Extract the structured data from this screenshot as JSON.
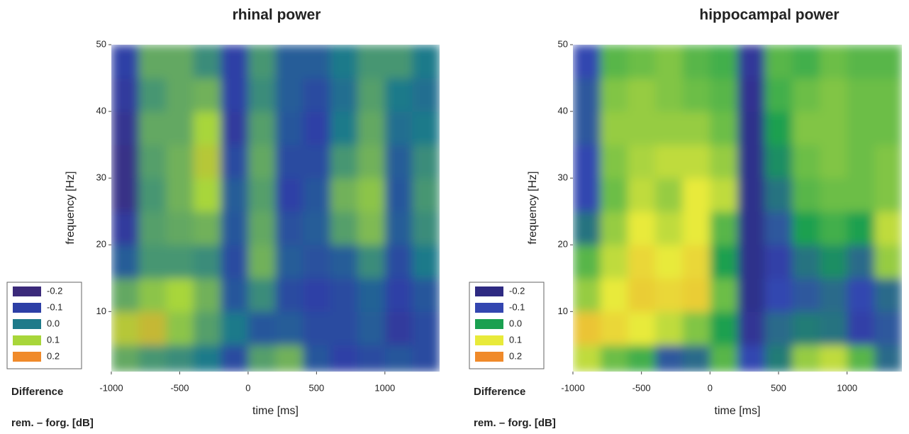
{
  "chart_data": [
    {
      "type": "heatmap",
      "title": "rhinal power",
      "xlabel": "time [ms]",
      "ylabel": "frequency [Hz]",
      "legend_title": "Difference",
      "legend_subtitle": "rem. – forg. [dB]",
      "xlim": [
        -1000,
        1400
      ],
      "ylim": [
        1,
        50
      ],
      "xticks": [
        -1000,
        -500,
        0,
        500,
        1000
      ],
      "yticks": [
        10,
        20,
        30,
        40,
        50
      ],
      "x_bins": [
        -1000,
        -800,
        -600,
        -400,
        -200,
        0,
        200,
        400,
        600,
        800,
        1000,
        1200,
        1400
      ],
      "y_bins": [
        1,
        5,
        10,
        15,
        20,
        25,
        30,
        35,
        40,
        45,
        50
      ],
      "legend": [
        {
          "value": -0.2,
          "color": "#3b2a7a"
        },
        {
          "value": -0.1,
          "color": "#2d3fa6"
        },
        {
          "value": 0,
          "label": "0.0",
          "color": "#1e7a8a"
        },
        {
          "value": 0.1,
          "color": "#a8d63a"
        },
        {
          "value": 0.2,
          "color": "#f08a2a"
        }
      ],
      "z": [
        [
          0.05,
          0.03,
          0.02,
          0.0,
          -0.08,
          0.04,
          0.06,
          -0.06,
          -0.1,
          -0.08,
          -0.06,
          -0.08
        ],
        [
          0.12,
          0.14,
          0.08,
          0.04,
          0.0,
          -0.06,
          -0.05,
          -0.08,
          -0.08,
          -0.05,
          -0.12,
          -0.08
        ],
        [
          0.05,
          0.08,
          0.1,
          0.06,
          -0.06,
          0.02,
          -0.08,
          -0.1,
          -0.08,
          -0.04,
          -0.1,
          -0.06
        ],
        [
          -0.05,
          0.03,
          0.03,
          0.02,
          -0.08,
          0.06,
          -0.05,
          -0.07,
          -0.05,
          0.02,
          -0.08,
          0.0
        ],
        [
          -0.12,
          0.04,
          0.05,
          0.06,
          -0.06,
          0.05,
          -0.07,
          -0.05,
          0.04,
          0.07,
          -0.05,
          0.02
        ],
        [
          -0.17,
          0.03,
          0.06,
          0.1,
          -0.05,
          0.04,
          -0.1,
          -0.06,
          0.06,
          0.08,
          -0.06,
          0.03
        ],
        [
          -0.17,
          0.04,
          0.06,
          0.12,
          -0.08,
          0.05,
          -0.08,
          -0.08,
          0.03,
          0.06,
          -0.05,
          0.02
        ],
        [
          -0.15,
          0.05,
          0.05,
          0.1,
          -0.12,
          0.04,
          -0.06,
          -0.1,
          0.0,
          0.05,
          -0.02,
          0.0
        ],
        [
          -0.12,
          0.03,
          0.05,
          0.06,
          -0.1,
          0.02,
          -0.05,
          -0.08,
          -0.02,
          0.04,
          0.0,
          -0.02
        ],
        [
          -0.1,
          0.05,
          0.05,
          0.02,
          -0.1,
          0.03,
          -0.05,
          -0.05,
          0.0,
          0.03,
          0.03,
          0.0
        ]
      ]
    },
    {
      "type": "heatmap",
      "title": "hippocampal power",
      "xlabel": "time [ms]",
      "ylabel": "frequency [Hz]",
      "legend_title": "Difference",
      "legend_subtitle": "rem. – forg. [dB]",
      "xlim": [
        -1000,
        1400
      ],
      "ylim": [
        1,
        50
      ],
      "xticks": [
        -1000,
        -500,
        0,
        500,
        1000
      ],
      "yticks": [
        10,
        20,
        30,
        40,
        50
      ],
      "x_bins": [
        -1000,
        -800,
        -600,
        -400,
        -200,
        0,
        200,
        400,
        600,
        800,
        1000,
        1200,
        1400
      ],
      "y_bins": [
        1,
        5,
        10,
        15,
        20,
        25,
        30,
        35,
        40,
        45,
        50
      ],
      "legend": [
        {
          "value": -0.2,
          "color": "#2e2a82"
        },
        {
          "value": -0.1,
          "color": "#3346b0"
        },
        {
          "value": 0,
          "label": "0.0",
          "color": "#1aa050"
        },
        {
          "value": 0.1,
          "color": "#e8ea3a"
        },
        {
          "value": 0.2,
          "color": "#f08a2a"
        }
      ],
      "z": [
        [
          0.08,
          0.04,
          0.02,
          -0.08,
          -0.06,
          0.03,
          -0.1,
          -0.04,
          0.06,
          0.08,
          0.03,
          -0.06
        ],
        [
          0.14,
          0.12,
          0.1,
          0.08,
          0.05,
          0.0,
          -0.16,
          -0.06,
          -0.04,
          -0.05,
          -0.12,
          -0.08
        ],
        [
          0.06,
          0.1,
          0.13,
          0.12,
          0.13,
          0.04,
          -0.18,
          -0.1,
          -0.08,
          -0.06,
          -0.1,
          -0.06
        ],
        [
          0.03,
          0.08,
          0.12,
          0.1,
          0.12,
          0.0,
          -0.18,
          -0.12,
          -0.05,
          -0.02,
          -0.06,
          0.06
        ],
        [
          -0.05,
          0.06,
          0.1,
          0.08,
          0.1,
          0.03,
          -0.18,
          -0.08,
          0.0,
          0.02,
          0.0,
          0.08
        ],
        [
          -0.1,
          0.04,
          0.08,
          0.06,
          0.1,
          0.08,
          -0.18,
          -0.05,
          0.03,
          0.04,
          0.04,
          0.05
        ],
        [
          -0.1,
          0.05,
          0.07,
          0.08,
          0.08,
          0.06,
          -0.18,
          -0.02,
          0.04,
          0.05,
          0.04,
          0.05
        ],
        [
          -0.08,
          0.06,
          0.06,
          0.06,
          0.06,
          0.04,
          -0.18,
          0.0,
          0.05,
          0.05,
          0.04,
          0.04
        ],
        [
          -0.08,
          0.05,
          0.06,
          0.05,
          0.04,
          0.03,
          -0.17,
          0.02,
          0.04,
          0.05,
          0.04,
          0.04
        ],
        [
          -0.1,
          0.03,
          0.04,
          0.05,
          0.03,
          0.02,
          -0.15,
          0.03,
          0.02,
          0.04,
          0.03,
          0.03
        ]
      ]
    }
  ]
}
